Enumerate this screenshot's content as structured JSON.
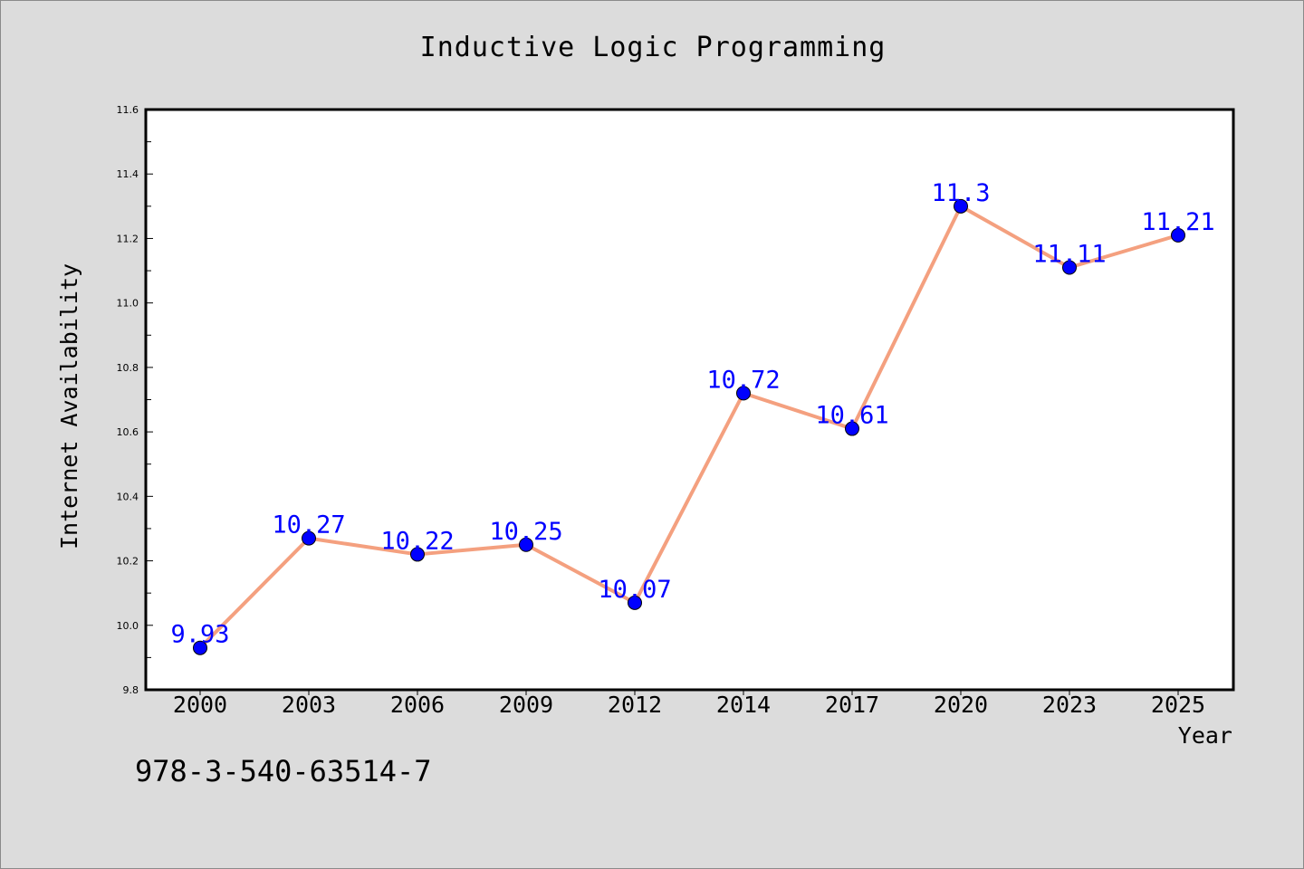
{
  "chart_data": {
    "type": "line",
    "title": "Inductive Logic Programming",
    "xlabel": "Year",
    "ylabel": "Internet Availability",
    "categories": [
      "2000",
      "2003",
      "2006",
      "2009",
      "2012",
      "2014",
      "2017",
      "2020",
      "2023",
      "2025"
    ],
    "values": [
      9.93,
      10.27,
      10.22,
      10.25,
      10.07,
      10.72,
      10.61,
      11.3,
      11.11,
      11.21
    ],
    "data_labels": [
      "9.93",
      "10.27",
      "10.22",
      "10.25",
      "10.07",
      "10.72",
      "10.61",
      "11.3",
      "11.11",
      "11.21"
    ],
    "ylim": [
      9.8,
      11.6
    ],
    "y_ticks": [
      "9.8",
      "10.0",
      "10.2",
      "10.4",
      "10.6",
      "10.8",
      "11.0",
      "11.2",
      "11.4",
      "11.6"
    ],
    "grid": false,
    "legend": "none",
    "line_color": "#f4a07f",
    "marker_color": "#0000ff",
    "label_color": "#0000ff"
  },
  "footer": {
    "isbn": "978-3-540-63514-7"
  }
}
